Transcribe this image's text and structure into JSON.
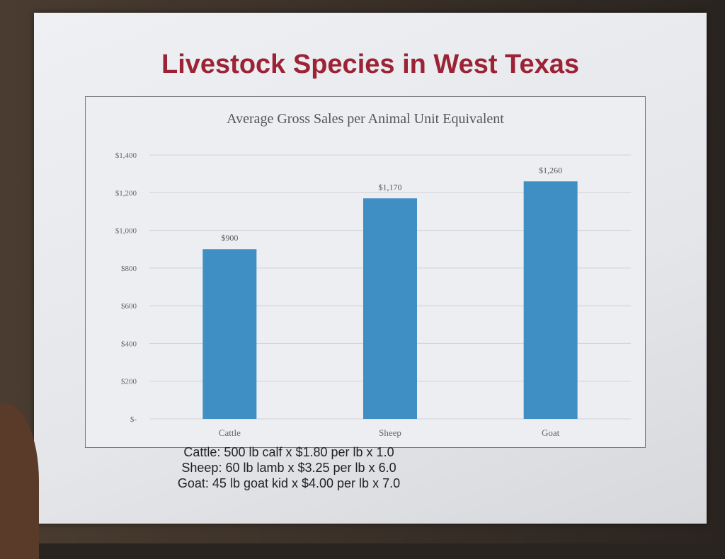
{
  "slide": {
    "title": "Livestock Species in West Texas",
    "notes": [
      "Cattle: 500 lb calf x $1.80 per lb x 1.0",
      "Sheep: 60 lb lamb x $3.25 per lb x 6.0",
      "Goat: 45 lb goat kid x $4.00 per lb x 7.0"
    ]
  },
  "chart_data": {
    "type": "bar",
    "title": "Average Gross Sales per Animal Unit Equivalent",
    "categories": [
      "Cattle",
      "Sheep",
      "Goat"
    ],
    "values": [
      900,
      1170,
      1260
    ],
    "data_labels": [
      "$900",
      "$1,170",
      "$1,260"
    ],
    "ylim": [
      0,
      1400
    ],
    "yticks": [
      0,
      200,
      400,
      600,
      800,
      1000,
      1200,
      1400
    ],
    "ytick_labels": [
      "$-",
      "$200",
      "$400",
      "$600",
      "$800",
      "$1,000",
      "$1,200",
      "$1,400"
    ],
    "xlabel": "",
    "ylabel": "",
    "grid": true,
    "bar_color": "#3f8fc4",
    "title_color": "#9b2335"
  }
}
